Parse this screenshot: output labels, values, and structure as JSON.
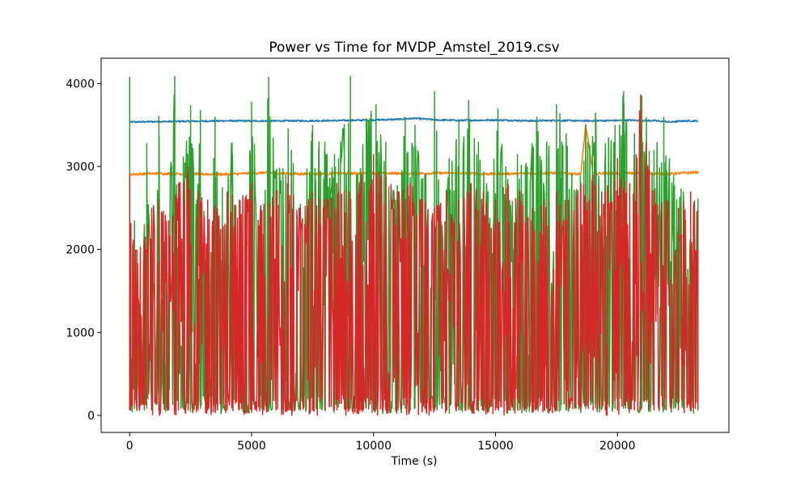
{
  "chart_data": {
    "type": "line",
    "title": "Power vs Time for MVDP_Amstel_2019.csv",
    "xlabel": "Time (s)",
    "ylabel": "",
    "xlim": [
      -1170,
      24570
    ],
    "ylim": [
      -205,
      4305
    ],
    "xticks": [
      0,
      5000,
      10000,
      15000,
      20000
    ],
    "yticks": [
      0,
      1000,
      2000,
      3000,
      4000
    ],
    "grid": false,
    "legend": "none",
    "series": [
      {
        "color": "#1f77b4",
        "style": "flat",
        "x": [
          0,
          1000,
          2500,
          4000,
          5500,
          7000,
          8500,
          10000,
          11000,
          11700,
          12500,
          13500,
          15000,
          16500,
          17500,
          18500,
          19500,
          20500,
          21500,
          22200,
          22600,
          23300
        ],
        "y": [
          3535,
          3540,
          3545,
          3550,
          3548,
          3550,
          3553,
          3560,
          3568,
          3580,
          3562,
          3555,
          3560,
          3550,
          3555,
          3550,
          3552,
          3557,
          3552,
          3535,
          3548,
          3550
        ],
        "noise": 10
      },
      {
        "color": "#ff7f0e",
        "style": "flat",
        "x": [
          0,
          1000,
          2500,
          4000,
          5500,
          7000,
          8500,
          10000,
          11500,
          13000,
          14500,
          16000,
          17500,
          18500,
          18700,
          19000,
          20500,
          22000,
          23300
        ],
        "y": [
          2905,
          2915,
          2910,
          2905,
          2925,
          2910,
          2915,
          2920,
          2915,
          2920,
          2910,
          2915,
          2920,
          2910,
          3500,
          2915,
          2920,
          2910,
          2930
        ],
        "noise": 15
      },
      {
        "color": "#2ca02c",
        "style": "volatile",
        "x": [
          0,
          20,
          200,
          400,
          700,
          900,
          1200,
          1500,
          1850,
          2100,
          2200,
          2500,
          2750,
          2900,
          3200,
          3500,
          3800,
          4200,
          4600,
          5000,
          5400,
          5700,
          6000,
          6500,
          7000,
          7500,
          8000,
          8400,
          8800,
          9050,
          9300,
          9700,
          10100,
          10500,
          10900,
          11300,
          11700,
          12100,
          12500,
          12800,
          13100,
          13500,
          13900,
          14300,
          14700,
          15100,
          15500,
          15900,
          16300,
          16700,
          17100,
          17500,
          17900,
          18300,
          18700,
          19100,
          19500,
          19900,
          20250,
          20700,
          21000,
          21500,
          21900,
          22300,
          22700,
          23000,
          23300
        ],
        "y": [
          4080,
          130,
          2350,
          800,
          3280,
          1400,
          3610,
          2250,
          4090,
          500,
          3120,
          3740,
          2600,
          3680,
          1200,
          3600,
          2750,
          3290,
          1750,
          3780,
          2200,
          4080,
          2950,
          3460,
          2550,
          3500,
          3300,
          3150,
          3510,
          4090,
          2900,
          3580,
          3750,
          3300,
          2600,
          3600,
          3500,
          2900,
          3910,
          2300,
          3100,
          3550,
          3800,
          3300,
          2700,
          3700,
          2850,
          3150,
          3000,
          3600,
          3300,
          3750,
          3400,
          2700,
          3500,
          3650,
          3280,
          3500,
          3910,
          3400,
          3850,
          3200,
          3600,
          2900,
          2700,
          2100,
          2610
        ],
        "min_level": 20
      },
      {
        "color": "#d62728",
        "style": "volatile",
        "x": [
          0,
          50,
          300,
          600,
          900,
          1200,
          1600,
          2000,
          2400,
          2800,
          3200,
          3600,
          4000,
          4500,
          5000,
          5500,
          6000,
          6500,
          7000,
          7500,
          8000,
          8500,
          9000,
          9500,
          10000,
          10500,
          11000,
          11500,
          12000,
          12500,
          13000,
          13500,
          14000,
          14500,
          15000,
          15500,
          16000,
          16500,
          17000,
          17500,
          18000,
          18500,
          19000,
          19500,
          20000,
          20500,
          20950,
          21500,
          22000,
          22500,
          23000,
          23300
        ],
        "y": [
          2900,
          2320,
          2000,
          2100,
          2500,
          2600,
          2350,
          2800,
          3000,
          2700,
          2600,
          2500,
          2700,
          2600,
          2800,
          2550,
          2700,
          2900,
          2500,
          2700,
          2600,
          2800,
          2700,
          2900,
          3150,
          2900,
          2700,
          2800,
          2600,
          2500,
          2700,
          2600,
          2800,
          2700,
          2600,
          2800,
          2700,
          2500,
          2600,
          2700,
          2600,
          2800,
          2900,
          2700,
          3100,
          2800,
          3870,
          2700,
          2600,
          2500,
          2700,
          2480
        ],
        "min_level": 0
      }
    ]
  }
}
